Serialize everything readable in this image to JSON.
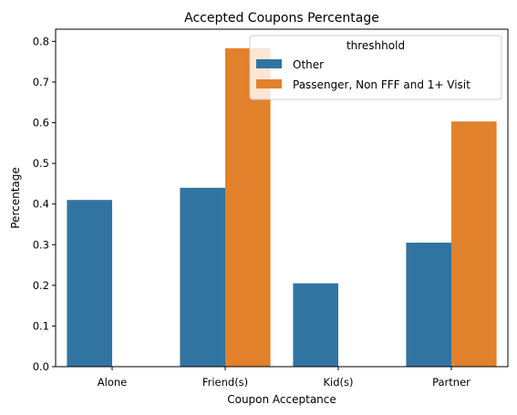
{
  "chart_data": {
    "type": "bar",
    "title": "Accepted Coupons Percentage",
    "xlabel": "Coupon Acceptance",
    "ylabel": "Percentage",
    "categories": [
      "Alone",
      "Friend(s)",
      "Kid(s)",
      "Partner"
    ],
    "ylim": [
      0,
      0.83
    ],
    "yticks": [
      0.0,
      0.1,
      0.2,
      0.3,
      0.4,
      0.5,
      0.6,
      0.7,
      0.8
    ],
    "ytick_labels": [
      "0.0",
      "0.1",
      "0.2",
      "0.3",
      "0.4",
      "0.5",
      "0.6",
      "0.7",
      "0.8"
    ],
    "grid": false,
    "legend": {
      "title": "threshhold",
      "placement": "top-right"
    },
    "series": [
      {
        "name": "Other",
        "color": "#3274a1",
        "values": [
          0.41,
          0.44,
          0.205,
          0.305
        ]
      },
      {
        "name": "Passenger, Non FFF and 1+ Visit",
        "color": "#e1812c",
        "values": [
          null,
          0.783,
          null,
          0.603
        ]
      }
    ]
  }
}
